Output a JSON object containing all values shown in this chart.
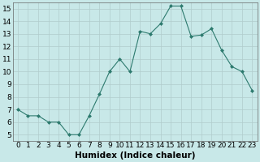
{
  "x": [
    0,
    1,
    2,
    3,
    4,
    5,
    6,
    7,
    8,
    9,
    10,
    11,
    12,
    13,
    14,
    15,
    16,
    17,
    18,
    19,
    20,
    21,
    22,
    23
  ],
  "y": [
    7,
    6.5,
    6.5,
    6,
    6,
    5,
    5,
    6.5,
    8.2,
    10,
    11,
    10,
    13.2,
    13,
    13.8,
    15.2,
    15.2,
    12.8,
    12.9,
    13.4,
    11.7,
    10.4,
    10,
    8.5
  ],
  "xlabel": "Humidex (Indice chaleur)",
  "xlim": [
    -0.5,
    23.5
  ],
  "ylim": [
    4.5,
    15.5
  ],
  "yticks": [
    5,
    6,
    7,
    8,
    9,
    10,
    11,
    12,
    13,
    14,
    15
  ],
  "xticks": [
    0,
    1,
    2,
    3,
    4,
    5,
    6,
    7,
    8,
    9,
    10,
    11,
    12,
    13,
    14,
    15,
    16,
    17,
    18,
    19,
    20,
    21,
    22,
    23
  ],
  "line_color": "#2d7a6e",
  "marker": "D",
  "marker_size": 2.0,
  "bg_color": "#c8e8e8",
  "grid_color": "#b0cccc",
  "font_size": 6.5,
  "xlabel_fontsize": 7.5
}
